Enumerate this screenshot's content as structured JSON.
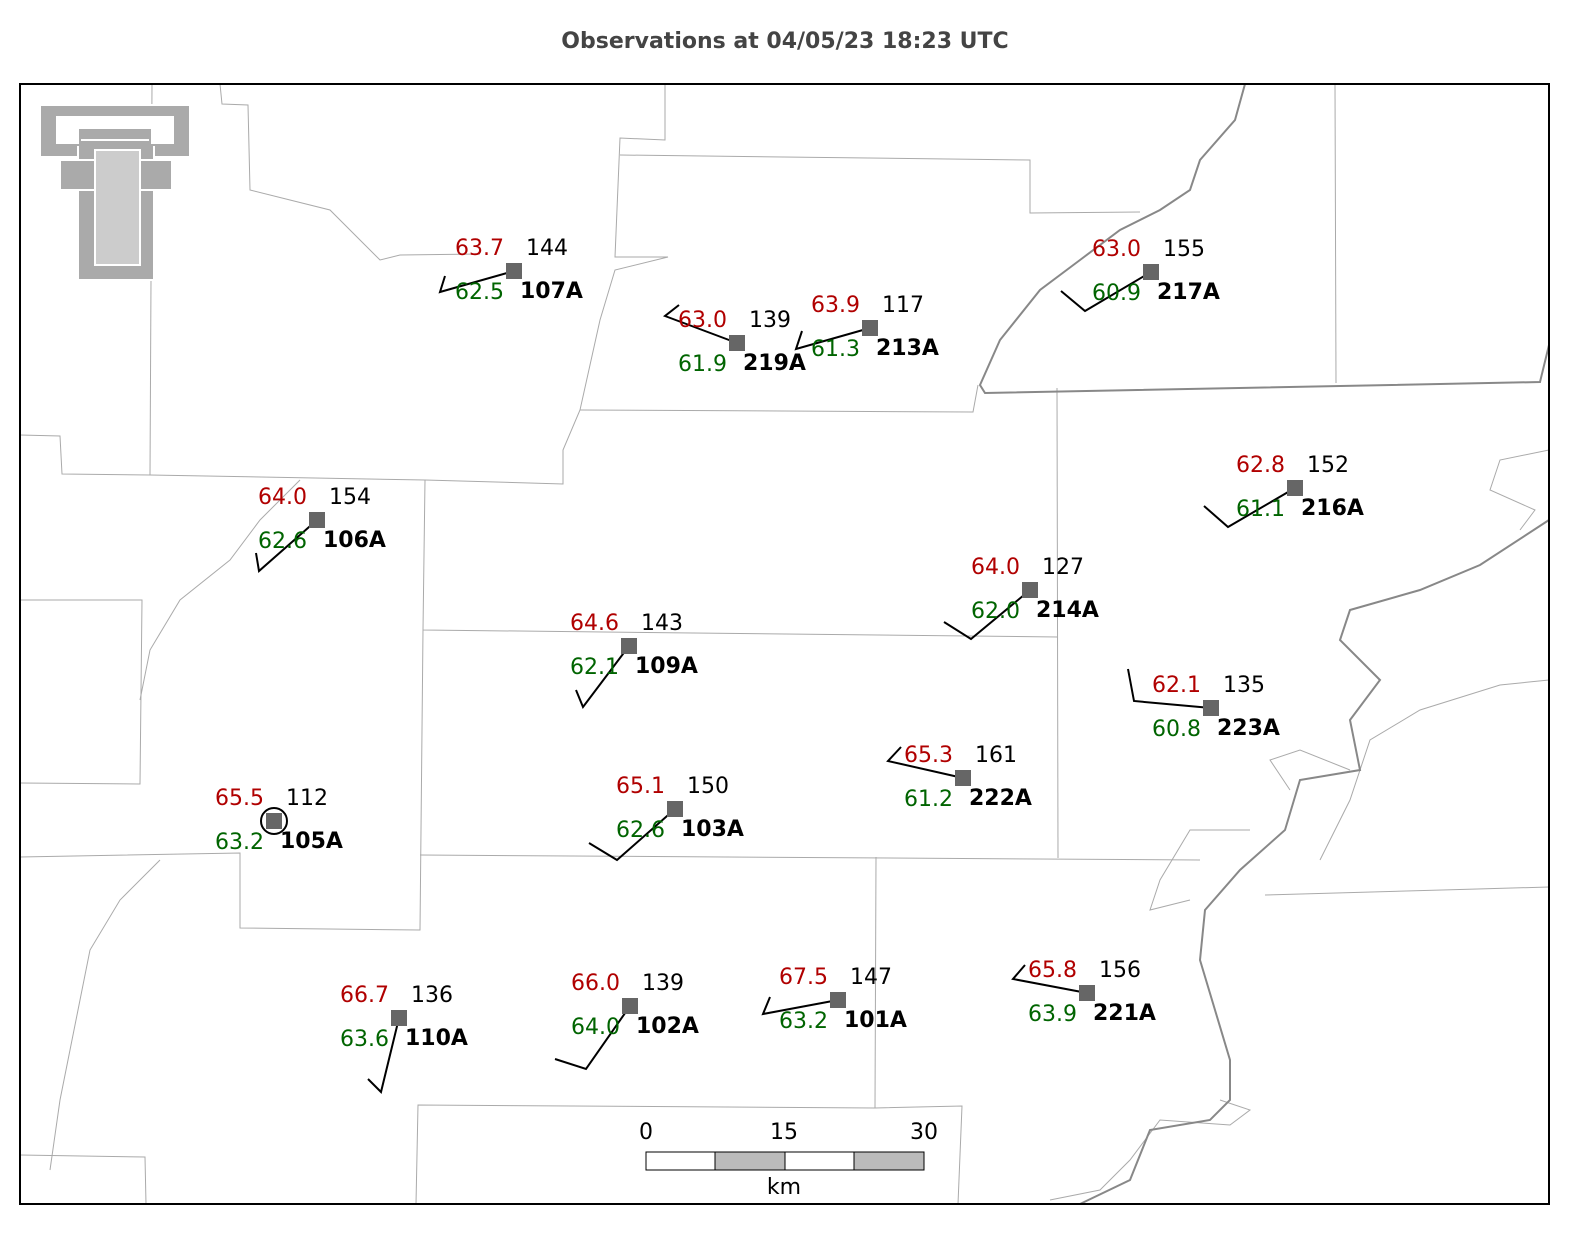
{
  "header": {
    "title": "Observations at 04/05/23 18:23 UTC"
  },
  "stations": [
    {
      "id": "107A",
      "temperature": "63.7",
      "dewpoint": "62.5",
      "pressure": "144"
    },
    {
      "id": "219A",
      "temperature": "63.0",
      "dewpoint": "61.9",
      "pressure": "139"
    },
    {
      "id": "213A",
      "temperature": "63.9",
      "dewpoint": "61.3",
      "pressure": "117"
    },
    {
      "id": "217A",
      "temperature": "63.0",
      "dewpoint": "60.9",
      "pressure": "155"
    },
    {
      "id": "106A",
      "temperature": "64.0",
      "dewpoint": "62.6",
      "pressure": "154"
    },
    {
      "id": "216A",
      "temperature": "62.8",
      "dewpoint": "61.1",
      "pressure": "152"
    },
    {
      "id": "214A",
      "temperature": "64.0",
      "dewpoint": "62.0",
      "pressure": "127"
    },
    {
      "id": "109A",
      "temperature": "64.6",
      "dewpoint": "62.1",
      "pressure": "143"
    },
    {
      "id": "223A",
      "temperature": "62.1",
      "dewpoint": "60.8",
      "pressure": "135"
    },
    {
      "id": "222A",
      "temperature": "65.3",
      "dewpoint": "61.2",
      "pressure": "161"
    },
    {
      "id": "105A",
      "temperature": "65.5",
      "dewpoint": "63.2",
      "pressure": "112"
    },
    {
      "id": "103A",
      "temperature": "65.1",
      "dewpoint": "62.6",
      "pressure": "150"
    },
    {
      "id": "110A",
      "temperature": "66.7",
      "dewpoint": "63.6",
      "pressure": "136"
    },
    {
      "id": "102A",
      "temperature": "66.0",
      "dewpoint": "64.0",
      "pressure": "139"
    },
    {
      "id": "101A",
      "temperature": "67.5",
      "dewpoint": "63.2",
      "pressure": "147"
    },
    {
      "id": "221A",
      "temperature": "65.8",
      "dewpoint": "63.9",
      "pressure": "156"
    }
  ],
  "scale_bar": {
    "ticks": [
      "0",
      "15",
      "30"
    ],
    "unit": "km"
  }
}
